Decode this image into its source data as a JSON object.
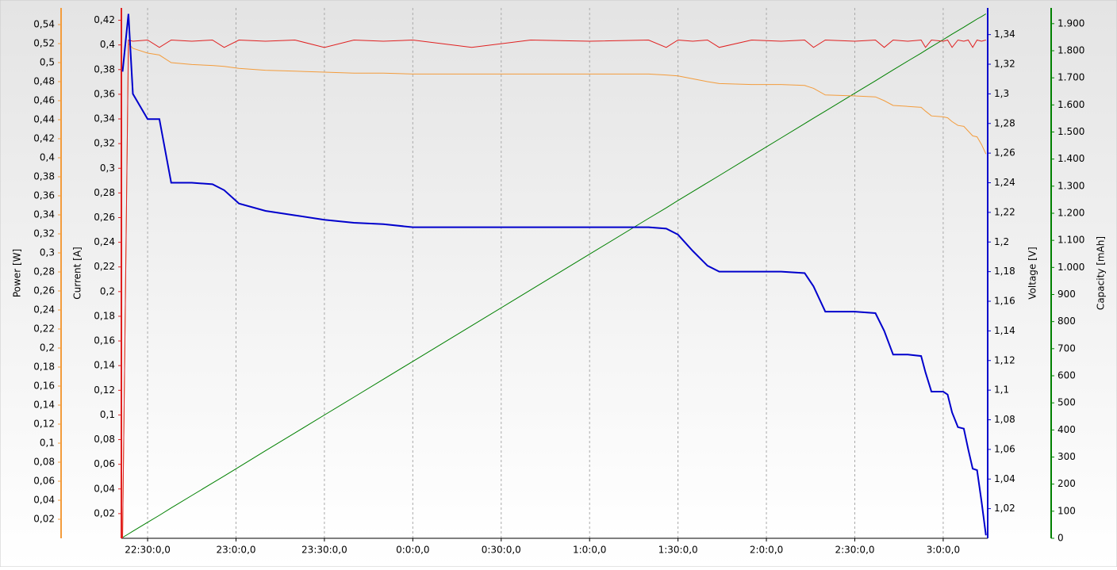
{
  "chart_data": {
    "type": "line",
    "x": [
      1341.5,
      1343.5,
      1345,
      1350,
      1354,
      1358,
      1365,
      1372,
      1376,
      1381,
      1390,
      1400,
      1410,
      1420,
      1430,
      1440,
      1460,
      1480,
      1500,
      1520,
      1526,
      1530,
      1535,
      1540,
      1544,
      1555,
      1565,
      1573,
      1576,
      1580,
      1590,
      1597,
      1600,
      1603,
      1608,
      1612.5,
      1614,
      1616,
      1620,
      1621.5,
      1623,
      1625,
      1627,
      1628.5,
      1630,
      1631.5,
      1633,
      1634.5
    ],
    "xlim": [
      1341.1,
      1635.1
    ],
    "xticks": [
      {
        "value": 1350,
        "label": "22:30:0,0"
      },
      {
        "value": 1380,
        "label": "23:0:0,0"
      },
      {
        "value": 1410,
        "label": "23:30:0,0"
      },
      {
        "value": 1440,
        "label": "0:0:0,0"
      },
      {
        "value": 1470,
        "label": "0:30:0,0"
      },
      {
        "value": 1500,
        "label": "1:0:0,0"
      },
      {
        "value": 1530,
        "label": "1:30:0,0"
      },
      {
        "value": 1560,
        "label": "2:0:0,0"
      },
      {
        "value": 1590,
        "label": "2:30:0,0"
      },
      {
        "value": 1620,
        "label": "3:0:0,0"
      }
    ],
    "grid": true,
    "axes": [
      {
        "label": "Power [W]",
        "color": "#f39c3c",
        "lim": [
          0,
          0.5575
        ],
        "ticks": [
          {
            "value": 0.02,
            "label": "0,02"
          },
          {
            "value": 0.04,
            "label": "0,04"
          },
          {
            "value": 0.06,
            "label": "0,06"
          },
          {
            "value": 0.08,
            "label": "0,08"
          },
          {
            "value": 0.1,
            "label": "0,1"
          },
          {
            "value": 0.12,
            "label": "0,12"
          },
          {
            "value": 0.14,
            "label": "0,14"
          },
          {
            "value": 0.16,
            "label": "0,16"
          },
          {
            "value": 0.18,
            "label": "0,18"
          },
          {
            "value": 0.2,
            "label": "0,2"
          },
          {
            "value": 0.22,
            "label": "0,22"
          },
          {
            "value": 0.24,
            "label": "0,24"
          },
          {
            "value": 0.26,
            "label": "0,26"
          },
          {
            "value": 0.28,
            "label": "0,28"
          },
          {
            "value": 0.3,
            "label": "0,3"
          },
          {
            "value": 0.32,
            "label": "0,32"
          },
          {
            "value": 0.34,
            "label": "0,34"
          },
          {
            "value": 0.36,
            "label": "0,36"
          },
          {
            "value": 0.38,
            "label": "0,38"
          },
          {
            "value": 0.4,
            "label": "0,4"
          },
          {
            "value": 0.42,
            "label": "0,42"
          },
          {
            "value": 0.44,
            "label": "0,44"
          },
          {
            "value": 0.46,
            "label": "0,46"
          },
          {
            "value": 0.48,
            "label": "0,48"
          },
          {
            "value": 0.5,
            "label": "0,5"
          },
          {
            "value": 0.52,
            "label": "0,52"
          },
          {
            "value": 0.54,
            "label": "0,54"
          }
        ]
      },
      {
        "label": "Current [A]",
        "color": "#e02020",
        "lim": [
          0,
          0.43
        ],
        "ticks": [
          {
            "value": 0.02,
            "label": "0,02"
          },
          {
            "value": 0.04,
            "label": "0,04"
          },
          {
            "value": 0.06,
            "label": "0,06"
          },
          {
            "value": 0.08,
            "label": "0,08"
          },
          {
            "value": 0.1,
            "label": "0,1"
          },
          {
            "value": 0.12,
            "label": "0,12"
          },
          {
            "value": 0.14,
            "label": "0,14"
          },
          {
            "value": 0.16,
            "label": "0,16"
          },
          {
            "value": 0.18,
            "label": "0,18"
          },
          {
            "value": 0.2,
            "label": "0,2"
          },
          {
            "value": 0.22,
            "label": "0,22"
          },
          {
            "value": 0.24,
            "label": "0,24"
          },
          {
            "value": 0.26,
            "label": "0,26"
          },
          {
            "value": 0.28,
            "label": "0,28"
          },
          {
            "value": 0.3,
            "label": "0,3"
          },
          {
            "value": 0.32,
            "label": "0,32"
          },
          {
            "value": 0.34,
            "label": "0,34"
          },
          {
            "value": 0.36,
            "label": "0,36"
          },
          {
            "value": 0.38,
            "label": "0,38"
          },
          {
            "value": 0.4,
            "label": "0,4"
          },
          {
            "value": 0.42,
            "label": "0,42"
          }
        ]
      },
      {
        "label": "Voltage [V]",
        "color": "#0000cc",
        "lim": [
          1.0,
          1.358
        ],
        "ticks": [
          {
            "value": 1.02,
            "label": "1,02"
          },
          {
            "value": 1.04,
            "label": "1,04"
          },
          {
            "value": 1.06,
            "label": "1,06"
          },
          {
            "value": 1.08,
            "label": "1,08"
          },
          {
            "value": 1.1,
            "label": "1,1"
          },
          {
            "value": 1.12,
            "label": "1,12"
          },
          {
            "value": 1.14,
            "label": "1,14"
          },
          {
            "value": 1.16,
            "label": "1,16"
          },
          {
            "value": 1.18,
            "label": "1,18"
          },
          {
            "value": 1.2,
            "label": "1,2"
          },
          {
            "value": 1.22,
            "label": "1,22"
          },
          {
            "value": 1.24,
            "label": "1,24"
          },
          {
            "value": 1.26,
            "label": "1,26"
          },
          {
            "value": 1.28,
            "label": "1,28"
          },
          {
            "value": 1.3,
            "label": "1,3"
          },
          {
            "value": 1.32,
            "label": "1,32"
          },
          {
            "value": 1.34,
            "label": "1,34"
          }
        ]
      },
      {
        "label": "Capacity [mAh]",
        "color": "#008000",
        "lim": [
          0,
          1958
        ],
        "ticks": [
          0,
          100,
          200,
          300,
          400,
          500,
          600,
          700,
          800,
          900,
          {
            "value": 1000,
            "label": "1.000"
          },
          {
            "value": 1100,
            "label": "1.100"
          },
          {
            "value": 1200,
            "label": "1.200"
          },
          {
            "value": 1300,
            "label": "1.300"
          },
          {
            "value": 1400,
            "label": "1.400"
          },
          {
            "value": 1500,
            "label": "1.500"
          },
          {
            "value": 1600,
            "label": "1.600"
          },
          {
            "value": 1700,
            "label": "1.700"
          },
          {
            "value": 1800,
            "label": "1.800"
          },
          {
            "value": 1900,
            "label": "1.900"
          }
        ]
      }
    ],
    "series": [
      {
        "axis": 3,
        "color": "#008000",
        "values": [
          3,
          16,
          26,
          59,
          85,
          112,
          158,
          204,
          230,
          263,
          323,
          389,
          455,
          521,
          587,
          653,
          785,
          917,
          1049,
          1181,
          1220,
          1247,
          1280,
          1313,
          1339,
          1412,
          1478,
          1531,
          1551,
          1577,
          1643,
          1689,
          1709,
          1729,
          1762,
          1791,
          1801,
          1815,
          1841,
          1851,
          1861,
          1874,
          1887,
          1897,
          1907,
          1917,
          1926,
          1936
        ]
      },
      {
        "axis": 0,
        "color": "#f39c3c",
        "values": [
          0,
          0.52,
          0.515,
          0.51,
          0.508,
          0.5,
          0.498,
          0.497,
          0.496,
          0.494,
          0.492,
          0.491,
          0.49,
          0.489,
          0.489,
          0.488,
          0.488,
          0.488,
          0.488,
          0.488,
          0.487,
          0.486,
          0.483,
          0.48,
          0.478,
          0.477,
          0.477,
          0.476,
          0.473,
          0.466,
          0.465,
          0.464,
          0.46,
          0.455,
          0.454,
          0.453,
          0.449,
          0.444,
          0.443,
          0.442,
          0.438,
          0.434,
          0.433,
          0.428,
          0.423,
          0.422,
          0.414,
          0.404
        ]
      },
      {
        "axis": 1,
        "color": "#e02020",
        "values": [
          0,
          0.404,
          0.403,
          0.404,
          0.398,
          0.404,
          0.403,
          0.404,
          0.398,
          0.404,
          0.403,
          0.404,
          0.398,
          0.404,
          0.403,
          0.404,
          0.398,
          0.404,
          0.403,
          0.404,
          0.398,
          0.404,
          0.403,
          0.404,
          0.398,
          0.404,
          0.403,
          0.404,
          0.398,
          0.404,
          0.403,
          0.404,
          0.398,
          0.404,
          0.403,
          0.404,
          0.398,
          0.404,
          0.403,
          0.404,
          0.398,
          0.404,
          0.403,
          0.404,
          0.398,
          0.404,
          0.403,
          0.404
        ]
      },
      {
        "axis": 2,
        "color": "#0000cc",
        "values": [
          1.315,
          1.354,
          1.3,
          1.283,
          1.283,
          1.24,
          1.24,
          1.239,
          1.235,
          1.226,
          1.221,
          1.218,
          1.215,
          1.213,
          1.212,
          1.21,
          1.21,
          1.21,
          1.21,
          1.21,
          1.209,
          1.205,
          1.194,
          1.184,
          1.18,
          1.18,
          1.18,
          1.179,
          1.17,
          1.153,
          1.153,
          1.152,
          1.14,
          1.124,
          1.124,
          1.123,
          1.112,
          1.099,
          1.099,
          1.097,
          1.085,
          1.075,
          1.074,
          1.06,
          1.047,
          1.046,
          1.025,
          1.002
        ]
      }
    ]
  }
}
